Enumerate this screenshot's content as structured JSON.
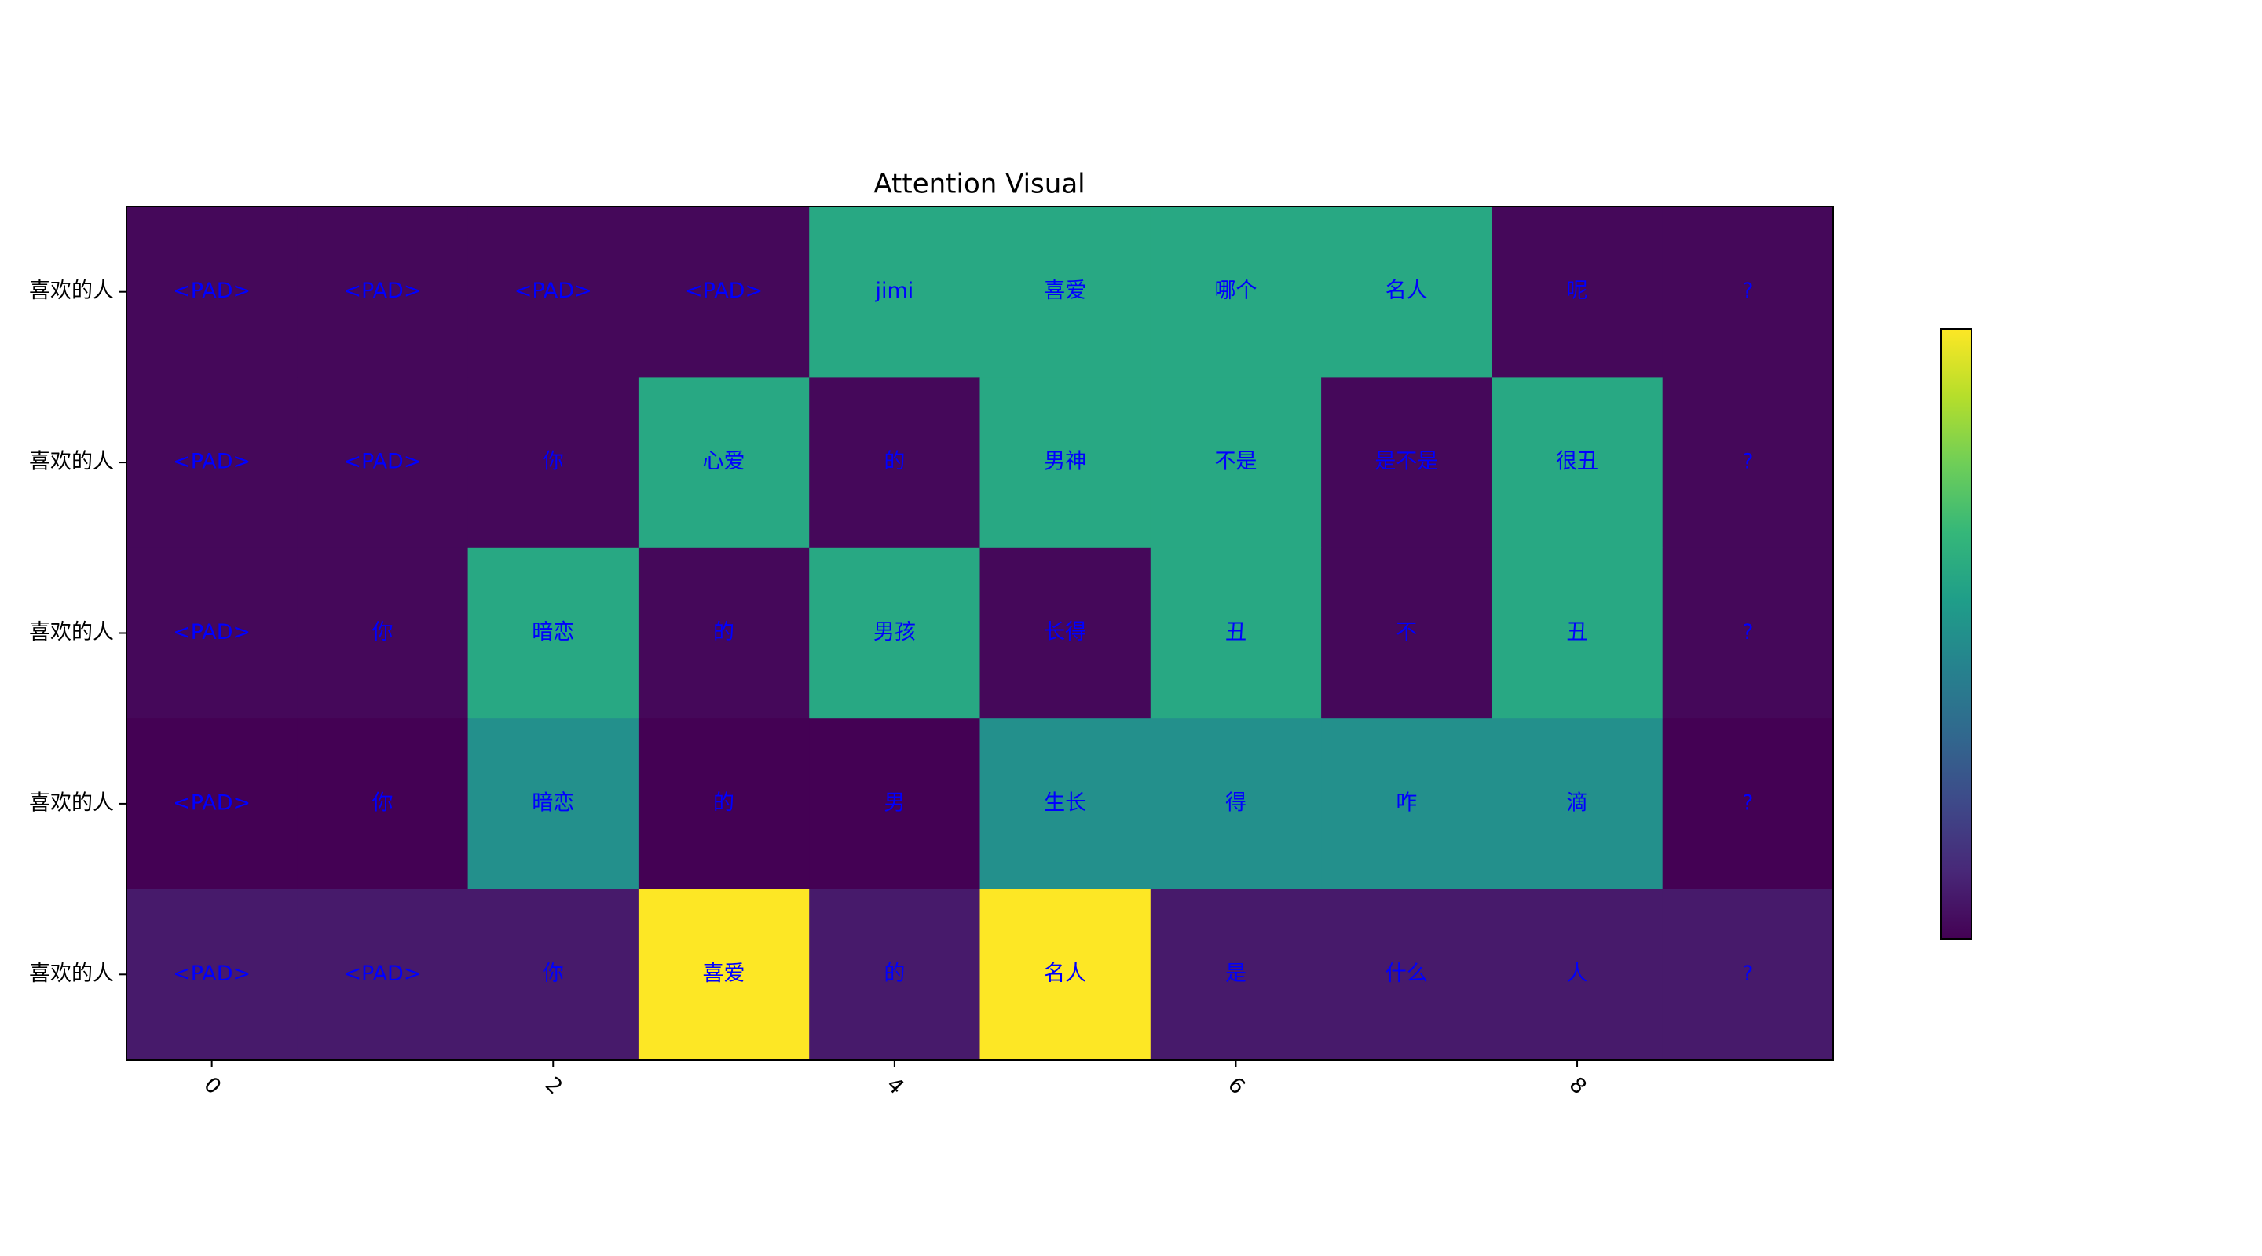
{
  "chart_data": {
    "type": "heatmap",
    "title": "Attention Visual",
    "rows": [
      "喜欢的人",
      "喜欢的人",
      "喜欢的人",
      "喜欢的人",
      "喜欢的人"
    ],
    "xlim": [
      -0.5,
      9.5
    ],
    "xticks": [
      0,
      2,
      4,
      6,
      8
    ],
    "colormap": "viridis",
    "vlim": [
      0,
      1
    ],
    "text_color": "#0000ff",
    "cell_labels": [
      [
        "<PAD>",
        "<PAD>",
        "<PAD>",
        "<PAD>",
        "jimi",
        "喜爱",
        "哪个",
        "名人",
        "呢",
        "?"
      ],
      [
        "<PAD>",
        "<PAD>",
        "你",
        "心爱",
        "的",
        "男神",
        "不是",
        "是不是",
        "很丑",
        "?"
      ],
      [
        "<PAD>",
        "你",
        "暗恋",
        "的",
        "男孩",
        "长得",
        "丑",
        "不",
        "丑",
        "?"
      ],
      [
        "<PAD>",
        "你",
        "暗恋",
        "的",
        "男",
        "生长",
        "得",
        "咋",
        "滴",
        "?"
      ],
      [
        "<PAD>",
        "<PAD>",
        "你",
        "喜爱",
        "的",
        "名人",
        "是",
        "什么",
        "人",
        "?"
      ]
    ],
    "values": [
      [
        0.02,
        0.02,
        0.02,
        0.02,
        0.6,
        0.6,
        0.6,
        0.6,
        0.02,
        0.02
      ],
      [
        0.02,
        0.02,
        0.02,
        0.6,
        0.02,
        0.6,
        0.6,
        0.02,
        0.6,
        0.02
      ],
      [
        0.02,
        0.02,
        0.6,
        0.02,
        0.6,
        0.02,
        0.6,
        0.02,
        0.6,
        0.02
      ],
      [
        0.0,
        0.0,
        0.5,
        0.0,
        0.0,
        0.5,
        0.5,
        0.5,
        0.5,
        0.0
      ],
      [
        0.07,
        0.07,
        0.07,
        1.0,
        0.07,
        1.0,
        0.07,
        0.07,
        0.07,
        0.07
      ]
    ]
  }
}
